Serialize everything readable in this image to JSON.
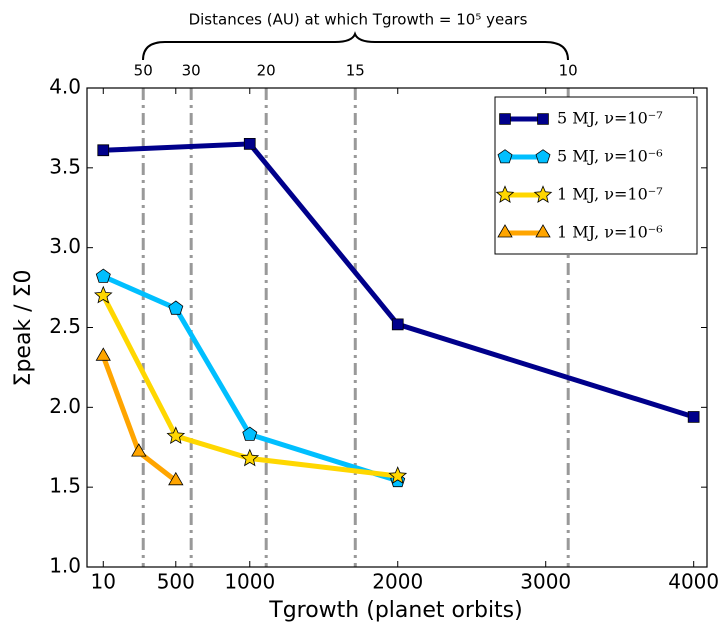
{
  "chart_data": {
    "type": "line",
    "top_annotation": "Distances (AU) at which  Tgrowth = 10⁵ years",
    "xlabel": "Tgrowth (planet orbits)",
    "ylabel": "Σpeak / Σ0",
    "xlim": [
      -100,
      4090
    ],
    "ylim": [
      1.0,
      4.0
    ],
    "xticks": [
      10,
      500,
      1000,
      2000,
      3000,
      4000
    ],
    "yticks": [
      {
        "value": 1.0,
        "label": "1.0"
      },
      {
        "value": 1.5,
        "label": "1.5"
      },
      {
        "value": 2.0,
        "label": "2.0"
      },
      {
        "value": 2.5,
        "label": "2.5"
      },
      {
        "value": 3.0,
        "label": "3.0"
      },
      {
        "value": 3.5,
        "label": "3.5"
      },
      {
        "value": 4.0,
        "label": "4.0"
      }
    ],
    "top_ticks": [
      {
        "value": 280,
        "label": "50"
      },
      {
        "value": 604,
        "label": "30"
      },
      {
        "value": 1111,
        "label": "20"
      },
      {
        "value": 1713,
        "label": "15"
      },
      {
        "value": 3152,
        "label": "10"
      }
    ],
    "vline_color": "#999999",
    "legend": "upper right",
    "series": [
      {
        "name": "5 MJ, ν=10⁻⁷",
        "color": "#00008b",
        "marker": "square",
        "x": [
          10,
          1000,
          2000,
          4000
        ],
        "values": [
          3.61,
          3.65,
          2.52,
          1.94
        ]
      },
      {
        "name": "5 MJ, ν=10⁻⁶",
        "color": "#00bfff",
        "marker": "pentagon",
        "x": [
          10,
          500,
          1000,
          2000
        ],
        "values": [
          2.82,
          2.62,
          1.83,
          1.54
        ]
      },
      {
        "name": "1 MJ, ν=10⁻⁷",
        "color": "#ffd700",
        "marker": "star",
        "x": [
          10,
          500,
          1000,
          2000
        ],
        "values": [
          2.7,
          1.82,
          1.68,
          1.57
        ]
      },
      {
        "name": "1 MJ, ν=10⁻⁶",
        "color": "#ffa500",
        "marker": "triangle",
        "x": [
          10,
          250,
          500
        ],
        "values": [
          2.32,
          1.72,
          1.54
        ]
      }
    ]
  }
}
